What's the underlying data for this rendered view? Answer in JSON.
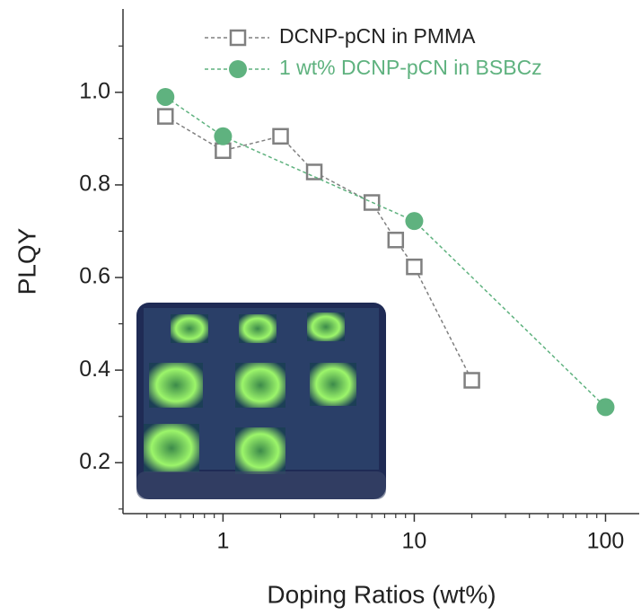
{
  "chart_data": {
    "type": "line",
    "x_label": "Doping Ratios (wt%)",
    "y_label": "PLQY",
    "xscale": "log",
    "xlim": [
      0.3,
      150
    ],
    "ylim": [
      0.09,
      1.18
    ],
    "xticks": [
      1,
      10,
      100
    ],
    "xminorticks": [
      0.4,
      0.5,
      0.6,
      0.7,
      0.8,
      0.9,
      2,
      3,
      4,
      5,
      6,
      7,
      8,
      9,
      20,
      30,
      40,
      50,
      60,
      70,
      80,
      90
    ],
    "yticks": [
      0.2,
      0.4,
      0.6,
      0.8,
      {
        "value": 1.0,
        "label": "1.0"
      }
    ],
    "yminorticks": [
      0.1,
      0.3,
      0.5,
      0.7,
      0.9,
      1.1
    ],
    "legend": "upper right",
    "series": [
      {
        "name": "DCNP-pCN in PMMA",
        "color": "#808080",
        "label_color": "#222222",
        "marker": "square",
        "x": [
          0.5,
          1,
          2,
          3,
          6,
          8,
          10,
          20
        ],
        "values": [
          0.948,
          0.874,
          0.905,
          0.828,
          0.762,
          0.681,
          0.623,
          0.378
        ]
      },
      {
        "name": "1 wt% DCNP-pCN in BSBCz",
        "color": "#5fb27f",
        "label_color": "#5fb27f",
        "marker": "circle",
        "x": [
          0.5,
          1,
          10,
          100
        ],
        "values": [
          0.99,
          0.905,
          0.722,
          0.32
        ]
      }
    ]
  }
}
